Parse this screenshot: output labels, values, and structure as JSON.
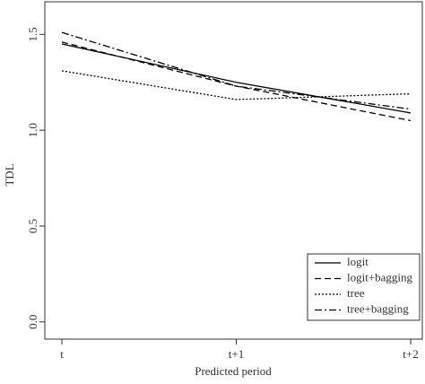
{
  "chart_data": {
    "type": "line",
    "x_label": "Predicted period",
    "y_label": "TDL",
    "categories": [
      "t",
      "t+1",
      "t+2"
    ],
    "series": [
      {
        "name": "logit",
        "color": "#000000",
        "dash": "solid",
        "values": [
          1.45,
          1.25,
          1.09
        ]
      },
      {
        "name": "logit+bagging",
        "color": "#000000",
        "dash": "dashed",
        "values": [
          1.46,
          1.23,
          1.05
        ]
      },
      {
        "name": "tree",
        "color": "#000000",
        "dash": "dotted",
        "values": [
          1.31,
          1.16,
          1.19
        ]
      },
      {
        "name": "tree+bagging",
        "color": "#000000",
        "dash": "dashdot",
        "values": [
          1.51,
          1.23,
          1.11
        ]
      }
    ],
    "ylim": [
      -0.09,
      1.67
    ],
    "yticks": [
      {
        "value": 0,
        "label": "0.0"
      },
      0.5,
      {
        "value": 1,
        "label": "1.0"
      },
      1.5
    ],
    "grid": false,
    "legend": "lower right"
  }
}
